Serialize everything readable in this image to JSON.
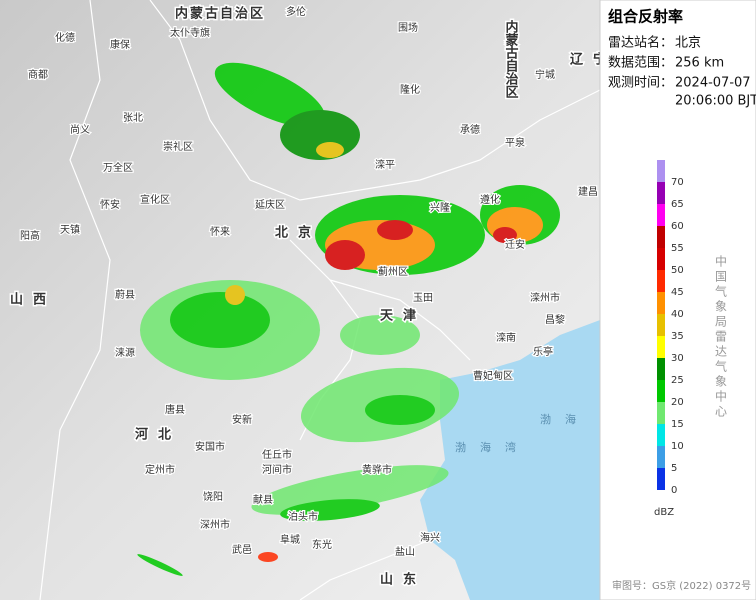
{
  "map": {
    "labels": [
      "内蒙古自治区",
      "多伦",
      "太仆寺旗",
      "康保",
      "化德",
      "商都",
      "张北",
      "尚义",
      "崇礼区",
      "万全区",
      "怀安",
      "宣化区",
      "天镇",
      "阳高",
      "延庆区",
      "怀来",
      "北京",
      "围场",
      "隆化",
      "承德",
      "平泉",
      "宁城",
      "兴隆",
      "滦平",
      "建昌",
      "遵化",
      "迁安",
      "蓟州区",
      "玉田",
      "滦州市",
      "昌黎",
      "滦南",
      "乐亭",
      "曹妃甸区",
      "天津",
      "蔚县",
      "涞源",
      "唐县",
      "定州市",
      "安国市",
      "安新",
      "任丘市",
      "河间市",
      "黄骅市",
      "泊头市",
      "东光",
      "阜城",
      "武邑",
      "深州市",
      "饶阳",
      "献县",
      "盐山",
      "海兴",
      "河北",
      "山西",
      "辽宁",
      "山东",
      "渤海湾",
      "渤海",
      "内蒙古自治区"
    ]
  },
  "panel": {
    "title": "组合反射率",
    "station": {
      "label": "雷达站名：",
      "value": "北京"
    },
    "range": {
      "label": "数据范围：",
      "value": "256 km"
    },
    "time": {
      "label": "观测时间：",
      "value": "2024-07-07",
      "value2": "20:06:00 BJT"
    },
    "credit": "中国气象局雷达气象中心",
    "unit": "dBZ",
    "footer": "审图号：GS京 (2022) 0372号",
    "legend": [
      {
        "value": 70,
        "color": "#ad90f0"
      },
      {
        "value": 65,
        "color": "#9600b4"
      },
      {
        "value": 60,
        "color": "#ff00f0"
      },
      {
        "value": 55,
        "color": "#c00000"
      },
      {
        "value": 50,
        "color": "#d60000"
      },
      {
        "value": 45,
        "color": "#ff2a00"
      },
      {
        "value": 40,
        "color": "#ff9000"
      },
      {
        "value": 35,
        "color": "#e7c000"
      },
      {
        "value": 30,
        "color": "#ffff00"
      },
      {
        "value": 25,
        "color": "#009000"
      },
      {
        "value": 20,
        "color": "#00c800"
      },
      {
        "value": 15,
        "color": "#70e870"
      },
      {
        "value": 10,
        "color": "#00e6e6"
      },
      {
        "value": 5,
        "color": "#3c9ee6"
      },
      {
        "value": 0,
        "color": "#0a32e6"
      }
    ]
  }
}
